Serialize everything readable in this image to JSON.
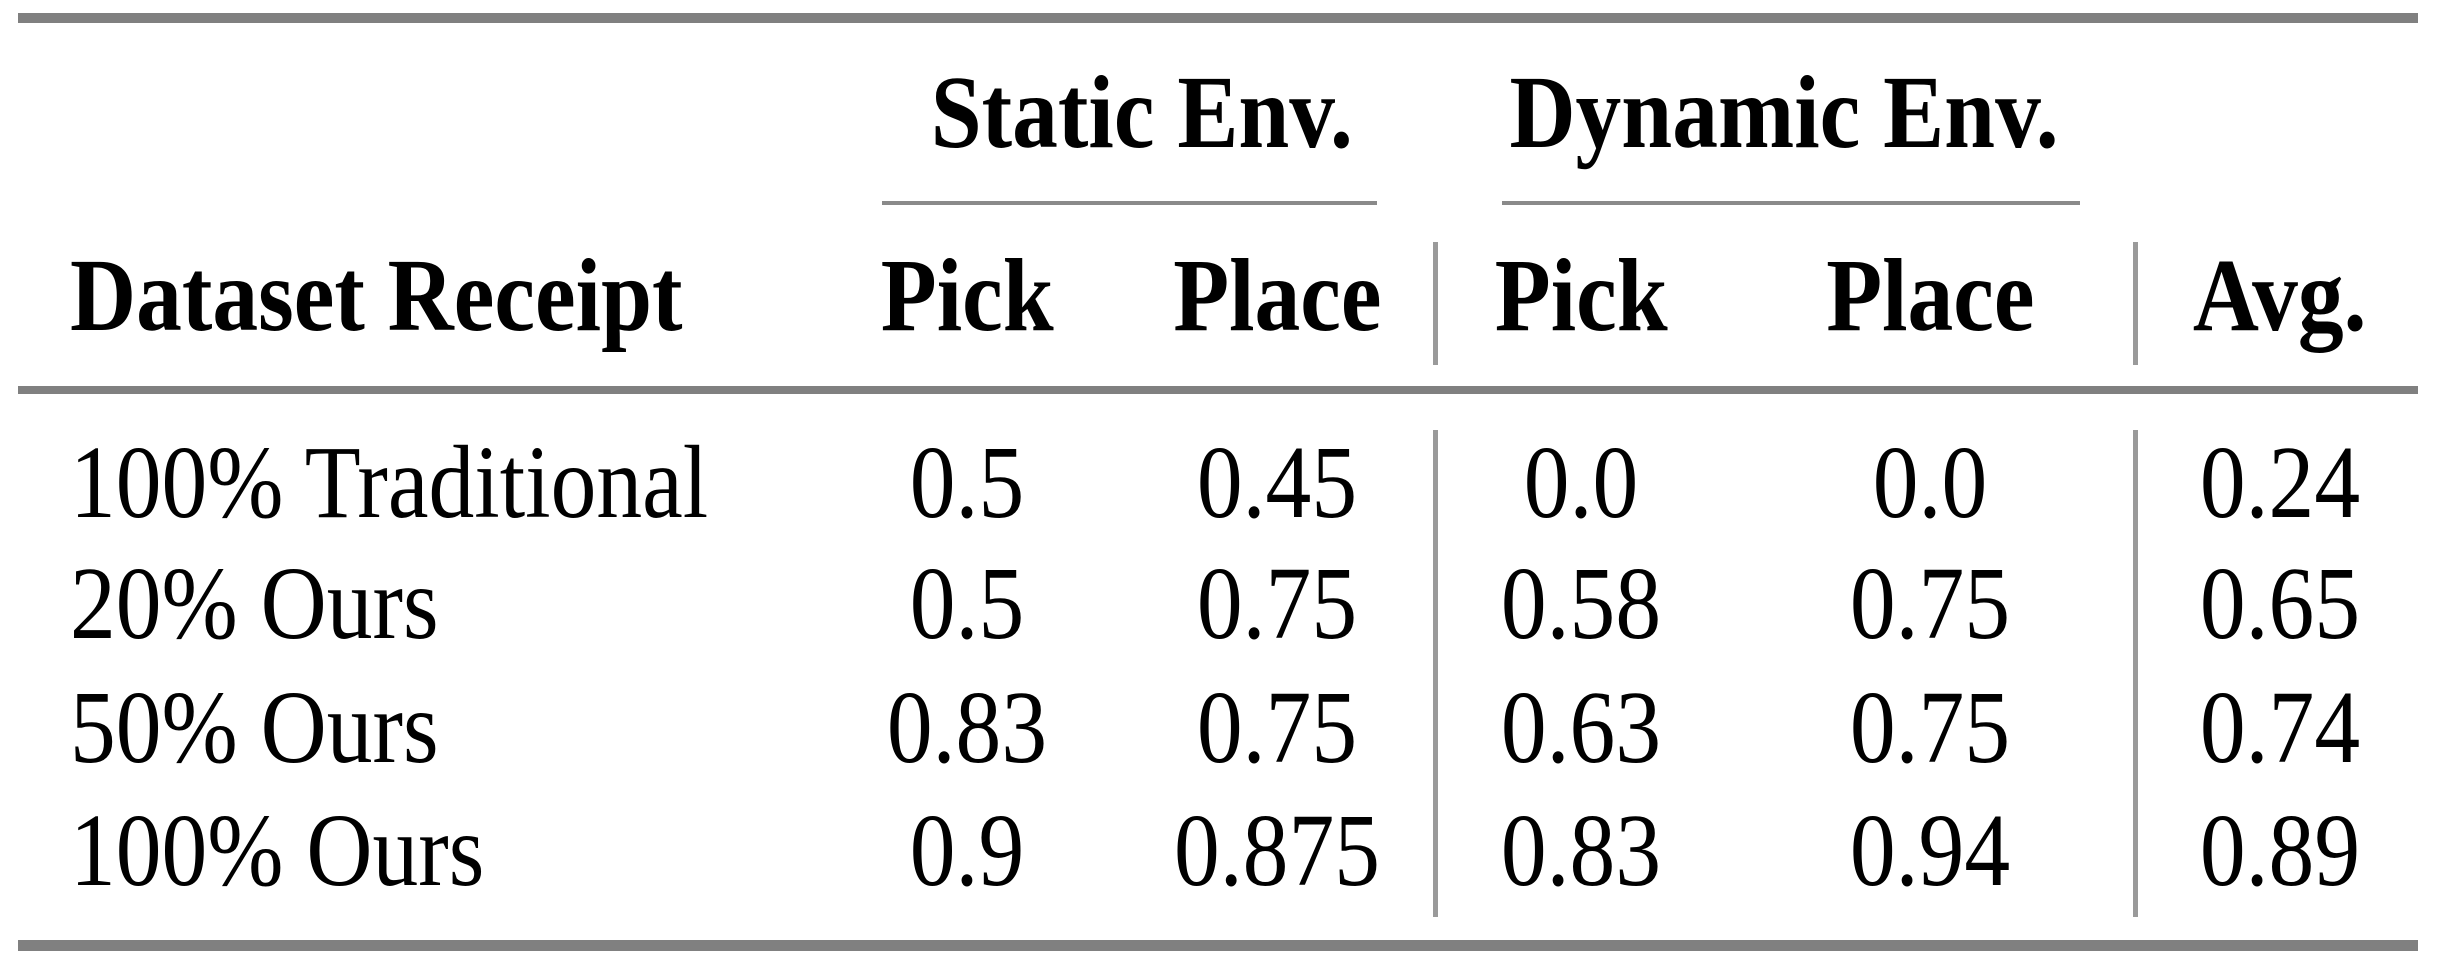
{
  "colors": {
    "background": "#ffffff",
    "text": "#000000",
    "rule": "#808080",
    "cmidrule": "#8a8a8a",
    "separator": "#9a9a9a"
  },
  "table": {
    "group_headers": {
      "static": "Static Env.",
      "dynamic": "Dynamic Env."
    },
    "column_headers": {
      "dataset": "Dataset Receipt",
      "static_pick": "Pick",
      "static_place": "Place",
      "dynamic_pick": "Pick",
      "dynamic_place": "Place",
      "avg": "Avg."
    },
    "rows": [
      {
        "cells": [
          "100% Traditional",
          "0.5",
          "0.45",
          "0.0",
          "0.0",
          "0.24"
        ]
      },
      {
        "cells": [
          "20% Ours",
          "0.5",
          "0.75",
          "0.58",
          "0.75",
          "0.65"
        ]
      },
      {
        "cells": [
          "50% Ours",
          "0.83",
          "0.75",
          "0.63",
          "0.75",
          "0.74"
        ]
      },
      {
        "cells": [
          "100% Ours",
          "0.9",
          "0.875",
          "0.83",
          "0.94",
          "0.89"
        ]
      }
    ]
  },
  "chart_data": {
    "type": "table",
    "title": "",
    "column_groups": [
      "",
      "Static Env.",
      "Static Env.",
      "Dynamic Env.",
      "Dynamic Env.",
      ""
    ],
    "columns": [
      "Dataset Receipt",
      "Pick",
      "Place",
      "Pick",
      "Place",
      "Avg."
    ],
    "rows": [
      [
        "100% Traditional",
        0.5,
        0.45,
        0.0,
        0.0,
        0.24
      ],
      [
        "20% Ours",
        0.5,
        0.75,
        0.58,
        0.75,
        0.65
      ],
      [
        "50% Ours",
        0.83,
        0.75,
        0.63,
        0.75,
        0.74
      ],
      [
        "100% Ours",
        0.9,
        0.875,
        0.83,
        0.94,
        0.89
      ]
    ]
  }
}
